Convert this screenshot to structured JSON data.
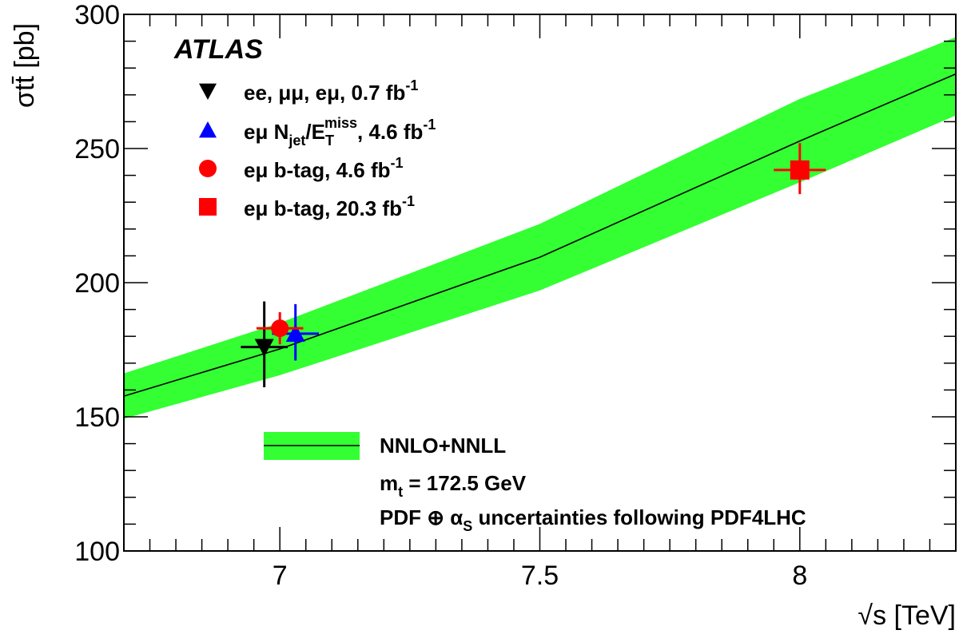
{
  "chart_data": {
    "type": "scatter",
    "experiment_label": "ATLAS",
    "xlabel": "√s [TeV]",
    "ylabel": "σtt̄ [pb]",
    "xlim": [
      6.7,
      8.3
    ],
    "ylim": [
      100,
      300
    ],
    "xticks": [
      {
        "value": 7,
        "label": "7"
      },
      {
        "value": 7.5,
        "label": "7.5"
      },
      {
        "value": 8,
        "label": "8"
      }
    ],
    "yticks": [
      {
        "value": 100,
        "label": "100"
      },
      {
        "value": 150,
        "label": "150"
      },
      {
        "value": 200,
        "label": "200"
      },
      {
        "value": 250,
        "label": "250"
      },
      {
        "value": 300,
        "label": "300"
      }
    ],
    "theory": {
      "name": "NNLO+NNLL",
      "x": [
        6.7,
        7.0,
        7.5,
        8.0,
        8.3
      ],
      "central": [
        157.7,
        175.3,
        209.5,
        252.8,
        277.8
      ],
      "lower": [
        149.3,
        165.5,
        197.1,
        237.4,
        262.3
      ],
      "upper": [
        166.2,
        185.0,
        221.9,
        268.5,
        291.5
      ],
      "band_color": "#33ff33",
      "line_color": "#000000"
    },
    "series": [
      {
        "name": "ee, μμ, eμ, 0.7 fb⁻¹",
        "marker": "triangle-down",
        "color": "#000000",
        "points": [
          {
            "x": 6.97,
            "y": 176,
            "xerr": 0.045,
            "yerr_low": 15,
            "yerr_high": 17
          }
        ]
      },
      {
        "name": "eμ Njet/ETmiss, 4.6 fb⁻¹",
        "marker": "triangle-up",
        "color": "#0000ff",
        "points": [
          {
            "x": 7.03,
            "y": 181,
            "xerr": 0.045,
            "yerr_low": 10,
            "yerr_high": 11
          }
        ]
      },
      {
        "name": "eμ b-tag, 4.6 fb⁻¹",
        "marker": "circle",
        "color": "#ff0000",
        "points": [
          {
            "x": 7.0,
            "y": 183,
            "xerr": 0.045,
            "yerr_low": 6,
            "yerr_high": 6
          }
        ]
      },
      {
        "name": "eμ b-tag, 20.3 fb⁻¹",
        "marker": "square",
        "color": "#ff0000",
        "points": [
          {
            "x": 8.0,
            "y": 242,
            "xerr": 0.05,
            "yerr_low": 9,
            "yerr_high": 10
          }
        ]
      }
    ],
    "legend_top": [
      {
        "text": "ee, μμ, eμ, 0.7 fb",
        "sup": "-1",
        "marker": "triangle-down",
        "color": "#000000"
      },
      {
        "text": "eμ N",
        "sub1": "jet",
        "mid": "/E",
        "sub2": "T",
        "sup1": "miss",
        "tail": ", 4.6 fb",
        "sup": "-1",
        "marker": "triangle-up",
        "color": "#0000ff"
      },
      {
        "text": "eμ b-tag, 4.6 fb",
        "sup": "-1",
        "marker": "circle",
        "color": "#ff0000"
      },
      {
        "text": "eμ b-tag, 20.3 fb",
        "sup": "-1",
        "marker": "square",
        "color": "#ff0000"
      }
    ],
    "legend_bottom": {
      "line1": "NNLO+NNLL",
      "line2_main": "m",
      "line2_sub": "t",
      "line2_rest": " = 172.5 GeV",
      "line3_a": "PDF ⊕ α",
      "line3_sub": "S",
      "line3_b": " uncertainties following PDF4LHC"
    },
    "grid": false,
    "legend_position": "top-left and bottom-center"
  }
}
